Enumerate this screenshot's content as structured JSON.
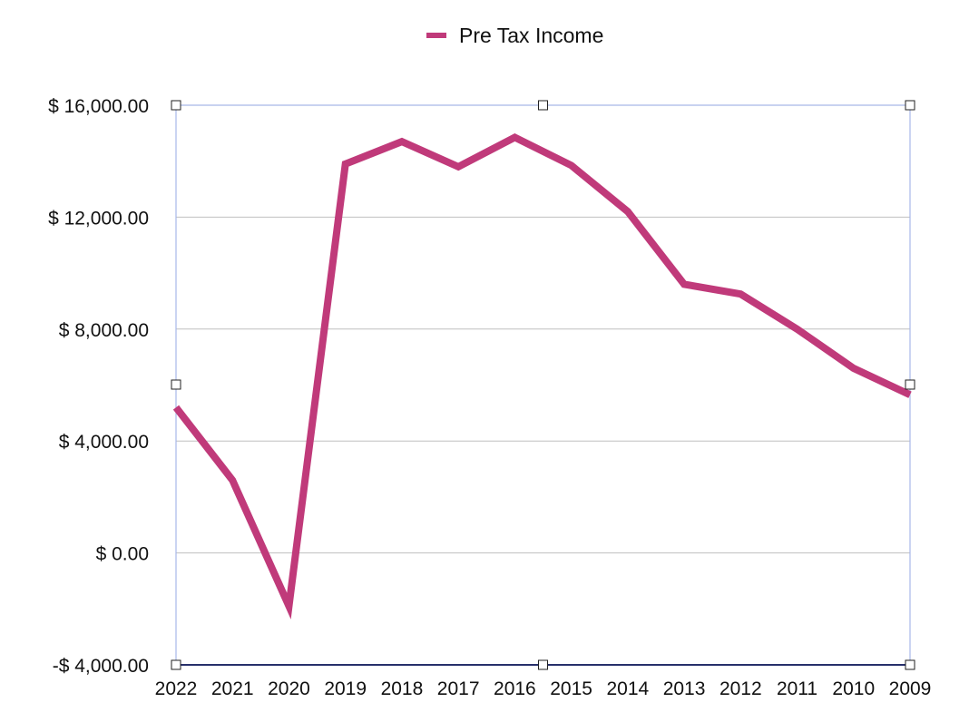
{
  "colors": {
    "series": "#c03a7a",
    "grid": "#c0c0c0",
    "frame": "#a8b8e8",
    "baseline": "#27306b",
    "handle_fill": "#ffffff",
    "handle_stroke": "#222222"
  },
  "chart_data": {
    "type": "line",
    "legend": {
      "position": "top-center",
      "entries": [
        "Pre Tax Income"
      ]
    },
    "categories": [
      "2022",
      "2021",
      "2020",
      "2019",
      "2018",
      "2017",
      "2016",
      "2015",
      "2014",
      "2013",
      "2012",
      "2011",
      "2010",
      "2009"
    ],
    "series": [
      {
        "name": "Pre Tax Income",
        "values": [
          5200,
          2600,
          -1900,
          13900,
          14700,
          13800,
          14850,
          13850,
          12200,
          9600,
          9250,
          8000,
          6600,
          5650
        ]
      }
    ],
    "yticks": [
      {
        "value": 16000,
        "label": "$ 16,000.00"
      },
      {
        "value": 12000,
        "label": "$ 12,000.00"
      },
      {
        "value": 8000,
        "label": "$ 8,000.00"
      },
      {
        "value": 4000,
        "label": "$ 4,000.00"
      },
      {
        "value": 0,
        "label": "$ 0.00"
      },
      {
        "value": -4000,
        "label": "-$ 4,000.00"
      }
    ],
    "ylim": [
      -4000,
      16000
    ],
    "grid": true
  }
}
